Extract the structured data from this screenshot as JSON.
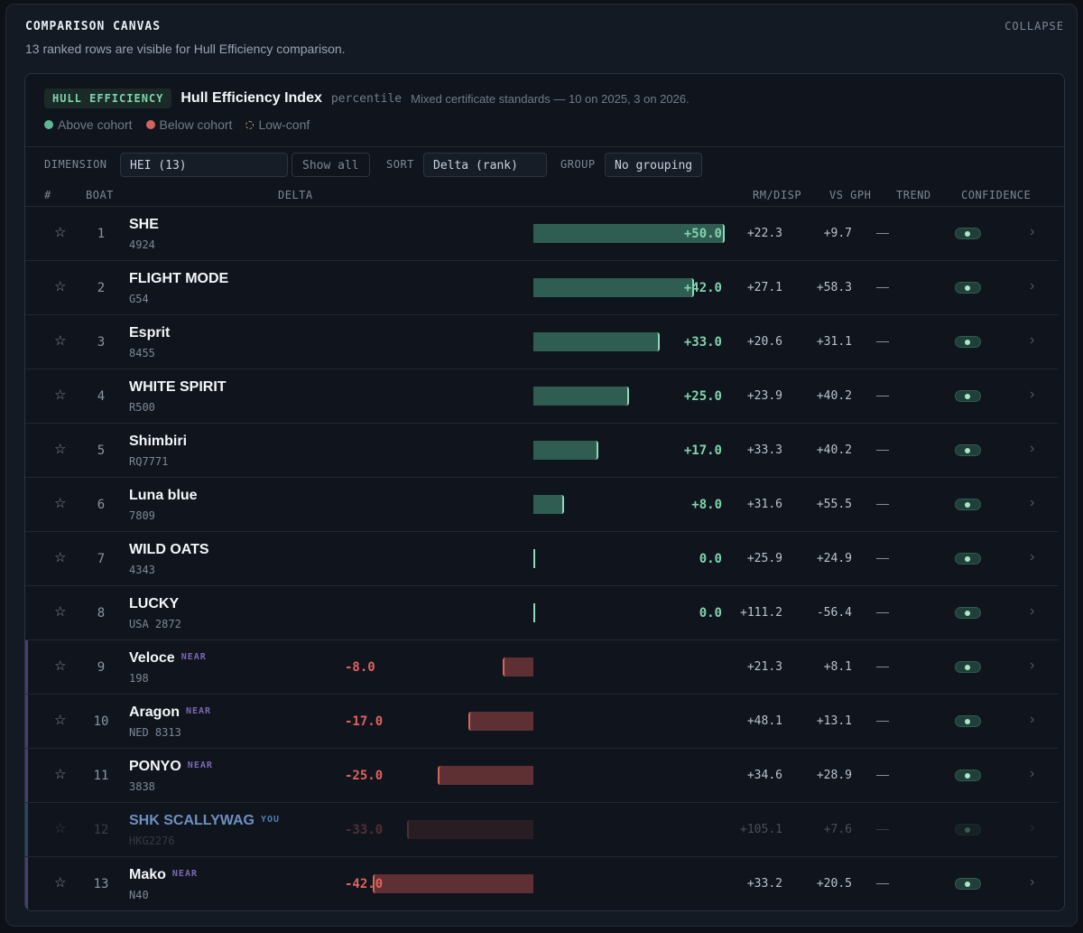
{
  "canvas": {
    "title": "COMPARISON CANVAS",
    "collapse_label": "COLLAPSE",
    "subtitle": "13 ranked rows are visible for Hull Efficiency comparison."
  },
  "metric": {
    "badge": "HULL EFFICIENCY",
    "name": "Hull Efficiency Index",
    "unit": "percentile",
    "note": "Mixed certificate standards — 10 on 2025, 3 on 2026."
  },
  "legend": [
    {
      "label": "Above cohort",
      "kind": "above"
    },
    {
      "label": "Below cohort",
      "kind": "below"
    },
    {
      "label": "Low-conf",
      "kind": "low"
    }
  ],
  "toolbar": {
    "dimension_label": "DIMENSION",
    "dimension_value": "HEI (13)",
    "show_all_label": "Show all",
    "sort_label": "SORT",
    "sort_value": "Delta (rank)",
    "group_label": "GROUP",
    "group_value": "No grouping"
  },
  "columns": {
    "rank": "#",
    "boat": "BOAT",
    "delta": "DELTA",
    "rm_disp": "RM/DISP",
    "vs_gph": "VS GPH",
    "trend": "TREND",
    "confidence": "CONFIDENCE"
  },
  "colors": {
    "positive": "#7fd3ad",
    "negative": "#e0625e",
    "near_accent": "#4c3d74",
    "you_accent": "#26466a"
  },
  "delta_scale": {
    "max_abs": 50
  },
  "rows": [
    {
      "rank": "1",
      "name": "SHE",
      "sail": "4924",
      "delta": 50.0,
      "delta_label": "+50.0",
      "rm_disp": "+22.3",
      "vs_gph": "+9.7",
      "trend": "—",
      "tag": "",
      "state": ""
    },
    {
      "rank": "2",
      "name": "FLIGHT MODE",
      "sail": "G54",
      "delta": 42.0,
      "delta_label": "+42.0",
      "rm_disp": "+27.1",
      "vs_gph": "+58.3",
      "trend": "—",
      "tag": "",
      "state": ""
    },
    {
      "rank": "3",
      "name": "Esprit",
      "sail": "8455",
      "delta": 33.0,
      "delta_label": "+33.0",
      "rm_disp": "+20.6",
      "vs_gph": "+31.1",
      "trend": "—",
      "tag": "",
      "state": ""
    },
    {
      "rank": "4",
      "name": "WHITE SPIRIT",
      "sail": "R500",
      "delta": 25.0,
      "delta_label": "+25.0",
      "rm_disp": "+23.9",
      "vs_gph": "+40.2",
      "trend": "—",
      "tag": "",
      "state": ""
    },
    {
      "rank": "5",
      "name": "Shimbiri",
      "sail": "RQ7771",
      "delta": 17.0,
      "delta_label": "+17.0",
      "rm_disp": "+33.3",
      "vs_gph": "+40.2",
      "trend": "—",
      "tag": "",
      "state": ""
    },
    {
      "rank": "6",
      "name": "Luna blue",
      "sail": "7809",
      "delta": 8.0,
      "delta_label": "+8.0",
      "rm_disp": "+31.6",
      "vs_gph": "+55.5",
      "trend": "—",
      "tag": "",
      "state": ""
    },
    {
      "rank": "7",
      "name": "WILD OATS",
      "sail": "4343",
      "delta": 0.0,
      "delta_label": "0.0",
      "rm_disp": "+25.9",
      "vs_gph": "+24.9",
      "trend": "—",
      "tag": "",
      "state": ""
    },
    {
      "rank": "8",
      "name": "LUCKY",
      "sail": "USA 2872",
      "delta": 0.0,
      "delta_label": "0.0",
      "rm_disp": "+111.2",
      "vs_gph": "-56.4",
      "trend": "—",
      "tag": "",
      "state": ""
    },
    {
      "rank": "9",
      "name": "Veloce",
      "sail": "198",
      "delta": -8.0,
      "delta_label": "-8.0",
      "rm_disp": "+21.3",
      "vs_gph": "+8.1",
      "trend": "—",
      "tag": "NEAR",
      "state": "near"
    },
    {
      "rank": "10",
      "name": "Aragon",
      "sail": "NED 8313",
      "delta": -17.0,
      "delta_label": "-17.0",
      "rm_disp": "+48.1",
      "vs_gph": "+13.1",
      "trend": "—",
      "tag": "NEAR",
      "state": "near"
    },
    {
      "rank": "11",
      "name": "PONYO",
      "sail": "3838",
      "delta": -25.0,
      "delta_label": "-25.0",
      "rm_disp": "+34.6",
      "vs_gph": "+28.9",
      "trend": "—",
      "tag": "NEAR",
      "state": "near"
    },
    {
      "rank": "12",
      "name": "SHK SCALLYWAG",
      "sail": "HKG2276",
      "delta": -33.0,
      "delta_label": "-33.0",
      "rm_disp": "+105.1",
      "vs_gph": "+7.6",
      "trend": "—",
      "tag": "YOU",
      "state": "you"
    },
    {
      "rank": "13",
      "name": "Mako",
      "sail": "N40",
      "delta": -42.0,
      "delta_label": "-42.0",
      "rm_disp": "+33.2",
      "vs_gph": "+20.5",
      "trend": "—",
      "tag": "NEAR",
      "state": "near"
    }
  ]
}
